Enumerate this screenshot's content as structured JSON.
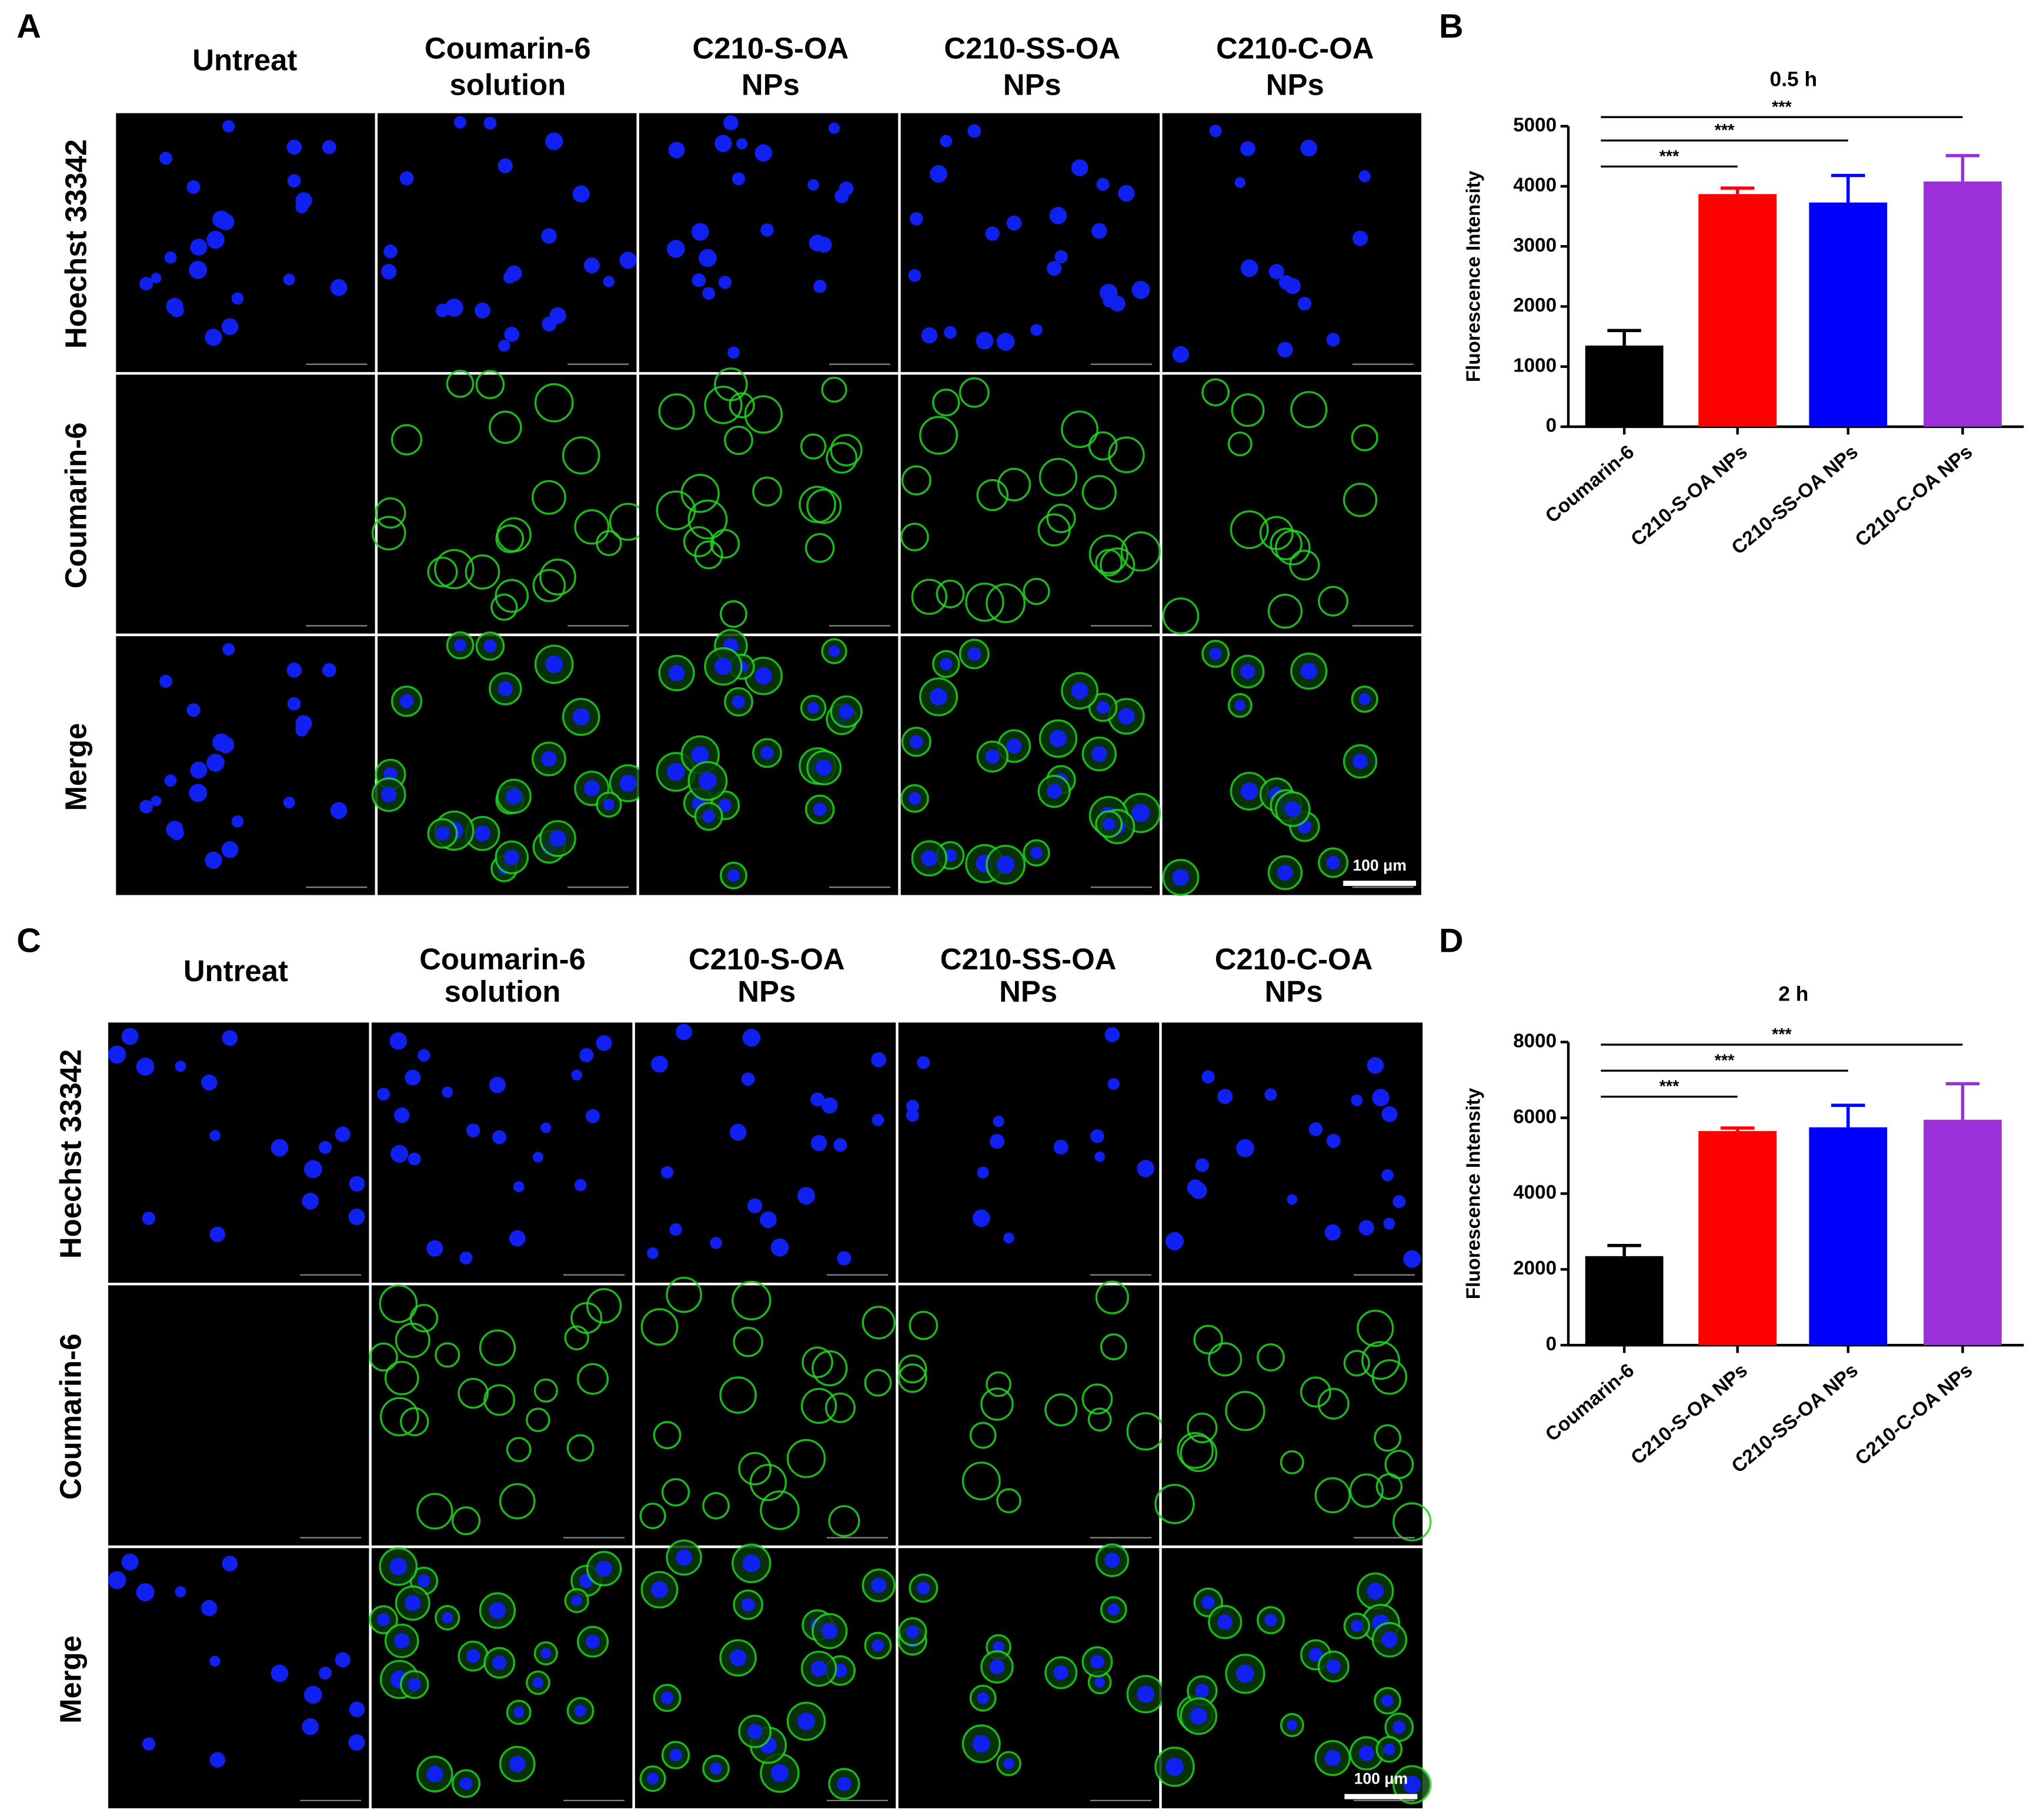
{
  "panels": [
    {
      "letter": "A",
      "columns": [
        [
          "Untreat"
        ],
        [
          "Coumarin-6",
          "solution"
        ],
        [
          "C210-S-OA",
          "NPs"
        ],
        [
          "C210-SS-OA",
          "NPs"
        ],
        [
          "C210-C-OA",
          "NPs"
        ]
      ],
      "rows": [
        "Hoechst 33342",
        "Coumarin-6",
        "Merge"
      ],
      "scale_bar": "100 μm"
    },
    {
      "letter": "C",
      "columns": [
        [
          "Untreat"
        ],
        [
          "Coumarin-6",
          "solution"
        ],
        [
          "C210-S-OA",
          "NPs"
        ],
        [
          "C210-SS-OA",
          "NPs"
        ],
        [
          "C210-C-OA",
          "NPs"
        ]
      ],
      "rows": [
        "Hoechst 33342",
        "Coumarin-6",
        "Merge"
      ],
      "scale_bar": "100 μm"
    }
  ],
  "chart_data": [
    {
      "type": "bar",
      "letter": "B",
      "title": "0.5 h",
      "y_label": "Fluorescence Intensity",
      "categories": [
        "Coumarin-6",
        "C210-S-OA NPs",
        "C210-SS-OA NPs",
        "C210-C-OA NPs"
      ],
      "values": [
        1350,
        3870,
        3730,
        4080
      ],
      "errors": [
        250,
        100,
        450,
        430
      ],
      "colors": [
        "#000000",
        "#ff0000",
        "#0000ff",
        "#9b30d9"
      ],
      "significance": [
        "***",
        "***",
        "***"
      ],
      "ylim": [
        0,
        5000
      ],
      "yticks": [
        0,
        1000,
        2000,
        3000,
        4000,
        5000
      ]
    },
    {
      "type": "bar",
      "letter": "D",
      "title": "2 h",
      "y_label": "Fluorescence Intensity",
      "categories": [
        "Coumarin-6",
        "C210-S-OA NPs",
        "C210-SS-OA NPs",
        "C210-C-OA NPs"
      ],
      "values": [
        2350,
        5650,
        5750,
        5950
      ],
      "errors": [
        280,
        80,
        580,
        950
      ],
      "colors": [
        "#000000",
        "#ff0000",
        "#0000ff",
        "#9b30d9"
      ],
      "significance": [
        "***",
        "***",
        "***"
      ],
      "ylim": [
        0,
        8000
      ],
      "yticks": [
        0,
        2000,
        4000,
        6000,
        8000
      ]
    }
  ]
}
